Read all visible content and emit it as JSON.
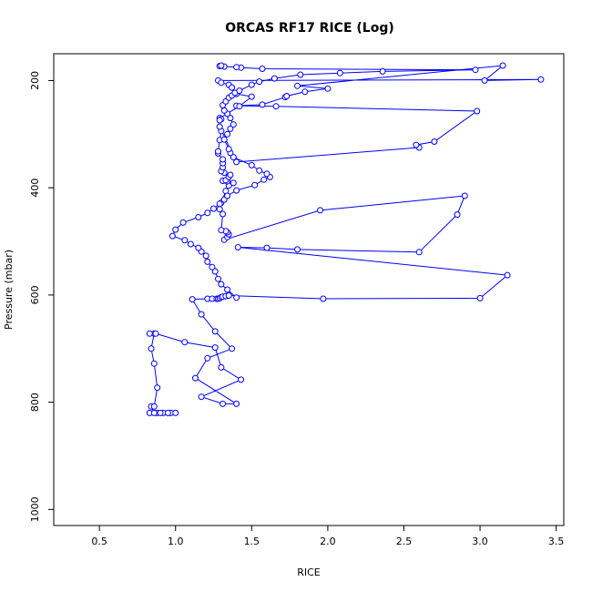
{
  "chart_data": {
    "type": "line",
    "title": "ORCAS RF17 RICE (Log)",
    "xlabel": "RICE",
    "ylabel": "Pressure (mbar)",
    "xlim": [
      0.2,
      3.55
    ],
    "ylim": [
      1030,
      150
    ],
    "y_inverted": true,
    "grid": false,
    "x_ticks": [
      0.5,
      1.0,
      1.5,
      2.0,
      2.5,
      3.0,
      3.5
    ],
    "x_tick_labels": [
      "0.5",
      "1.0",
      "1.5",
      "2.0",
      "2.5",
      "3.0",
      "3.5"
    ],
    "y_ticks": [
      200,
      400,
      600,
      800,
      1000
    ],
    "y_tick_labels": [
      "200",
      "400",
      "600",
      "800",
      "1000"
    ],
    "series_color": "#0000ff",
    "series": [
      {
        "x": [
          0.83,
          0.88,
          0.92,
          0.97,
          1.0,
          0.95,
          0.9,
          0.86,
          0.84,
          0.86,
          0.88,
          0.86,
          0.84,
          0.86,
          0.83,
          0.87,
          1.06,
          1.26,
          1.3,
          1.43,
          1.17,
          1.31,
          1.4,
          1.13,
          1.21,
          1.37,
          1.26,
          1.17,
          1.11,
          1.21,
          1.24,
          1.27,
          1.28,
          1.29,
          1.3,
          1.31,
          1.33,
          1.35,
          1.97,
          3.0,
          3.18,
          1.41,
          1.6,
          1.8,
          2.6,
          2.85,
          2.9,
          1.95,
          1.32,
          1.34,
          1.35,
          1.34,
          1.33,
          1.3,
          1.31,
          1.29,
          1.3,
          1.33,
          1.35,
          1.38,
          1.34,
          1.31,
          1.33,
          1.35,
          1.36,
          1.32,
          1.3,
          1.31,
          1.31,
          1.31,
          1.28,
          1.28,
          1.29,
          1.3,
          1.29,
          1.4,
          2.6,
          2.58,
          2.7,
          2.98,
          1.66,
          1.4,
          1.57,
          1.72,
          1.73,
          1.85,
          2.0,
          1.8,
          3.15,
          3.03,
          3.4,
          1.28,
          1.3,
          1.35,
          1.37,
          1.4,
          1.5,
          1.42,
          1.29,
          1.3,
          1.29
        ],
        "y": [
          820,
          820,
          820,
          820,
          820,
          820,
          820,
          820,
          808,
          808,
          773,
          728,
          700,
          672,
          672,
          672,
          688,
          698,
          735,
          758,
          790,
          803,
          803,
          755,
          718,
          700,
          668,
          636,
          608,
          607,
          607,
          607,
          607,
          606,
          604,
          603,
          602,
          601,
          607,
          606,
          563,
          511,
          512,
          515,
          520,
          450,
          415,
          442,
          497,
          492,
          487,
          483,
          481,
          479,
          449,
          440,
          428,
          406,
          396,
          391,
          388,
          387,
          386,
          380,
          376,
          372,
          369,
          362,
          354,
          347,
          336,
          332,
          311,
          294,
          286,
          352,
          325,
          320,
          314,
          257,
          248,
          247,
          245,
          231,
          229,
          221,
          215,
          210,
          172,
          200,
          198,
          200,
          204,
          208,
          213,
          225,
          230,
          248,
          270,
          272,
          274
        ]
      },
      {
        "x": [
          1.4,
          1.34,
          1.3,
          1.28,
          1.26,
          1.24,
          1.21,
          1.2,
          1.17,
          1.15,
          1.1,
          1.06,
          0.98,
          1.0,
          1.05,
          1.15,
          1.21,
          1.25,
          1.29,
          1.32,
          1.34,
          1.4,
          1.52,
          1.58,
          1.62,
          1.6,
          1.55,
          1.5,
          1.38,
          1.36,
          1.35,
          1.32,
          1.34,
          1.36,
          1.38,
          1.36,
          1.34,
          1.32,
          1.31,
          1.33,
          1.35,
          1.37,
          1.39,
          1.42,
          1.5,
          1.55,
          1.65,
          1.82,
          2.08,
          2.36,
          2.97,
          1.57,
          1.43,
          1.4,
          1.32,
          1.29,
          1.3
        ],
        "y": [
          605,
          590,
          580,
          570,
          556,
          548,
          538,
          527,
          519,
          512,
          505,
          498,
          490,
          478,
          465,
          455,
          447,
          439,
          430,
          422,
          415,
          405,
          395,
          385,
          380,
          374,
          368,
          358,
          343,
          335,
          328,
          310,
          300,
          290,
          282,
          270,
          262,
          256,
          246,
          239,
          232,
          228,
          223,
          219,
          208,
          202,
          196,
          189,
          186,
          183,
          180,
          178,
          176,
          175,
          174,
          173,
          172
        ]
      }
    ]
  }
}
